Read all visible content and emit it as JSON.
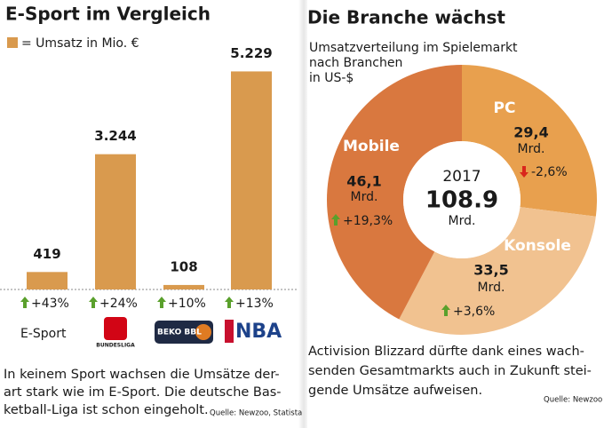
{
  "chart_data": [
    {
      "type": "bar",
      "title": "E-Sport im Vergleich",
      "legend": "= Umsatz in Mio. €",
      "categories": [
        "E-Sport",
        "BUNDESLIGA",
        "BEKO BBL",
        "NBA"
      ],
      "values": [
        419,
        3244,
        108,
        5229
      ],
      "value_labels": [
        "419",
        "3.244",
        "108",
        "5.229"
      ],
      "changes": [
        "+43%",
        "+24%",
        "+10%",
        "+13%"
      ],
      "color": "#d99a4e",
      "ylim": [
        0,
        5600
      ],
      "note_lines": [
        "In keinem Sport wachsen die Umsätze der-",
        "art stark wie im E-Sport. Die deutsche Bas-",
        "ketball-Liga ist schon eingeholt."
      ],
      "source": "Quelle: Newzoo, Statista"
    },
    {
      "type": "pie",
      "title": "Die Branche wächst",
      "subtitle_lines": [
        "Umsatzverteilung im Spielemarkt",
        "nach Branchen",
        "in US-$"
      ],
      "categories": [
        "PC",
        "Konsole",
        "Mobile"
      ],
      "values": [
        29.4,
        33.5,
        46.1
      ],
      "value_labels": [
        "29,4",
        "33,5",
        "46,1"
      ],
      "unit": "Mrd.",
      "changes": [
        "-2,6%",
        "+3,6%",
        "+19,3%"
      ],
      "colors": [
        "#e8a04e",
        "#f1c290",
        "#d9783f"
      ],
      "center_year": "2017",
      "total": 108.9,
      "total_unit": "Mrd.",
      "note_lines": [
        "Activision Blizzard dürfte dank eines wach-",
        "senden Gesamtmarkts auch in Zukunft stei-",
        "gende Umsätze aufweisen."
      ],
      "source": "Quelle: Newzoo"
    }
  ]
}
